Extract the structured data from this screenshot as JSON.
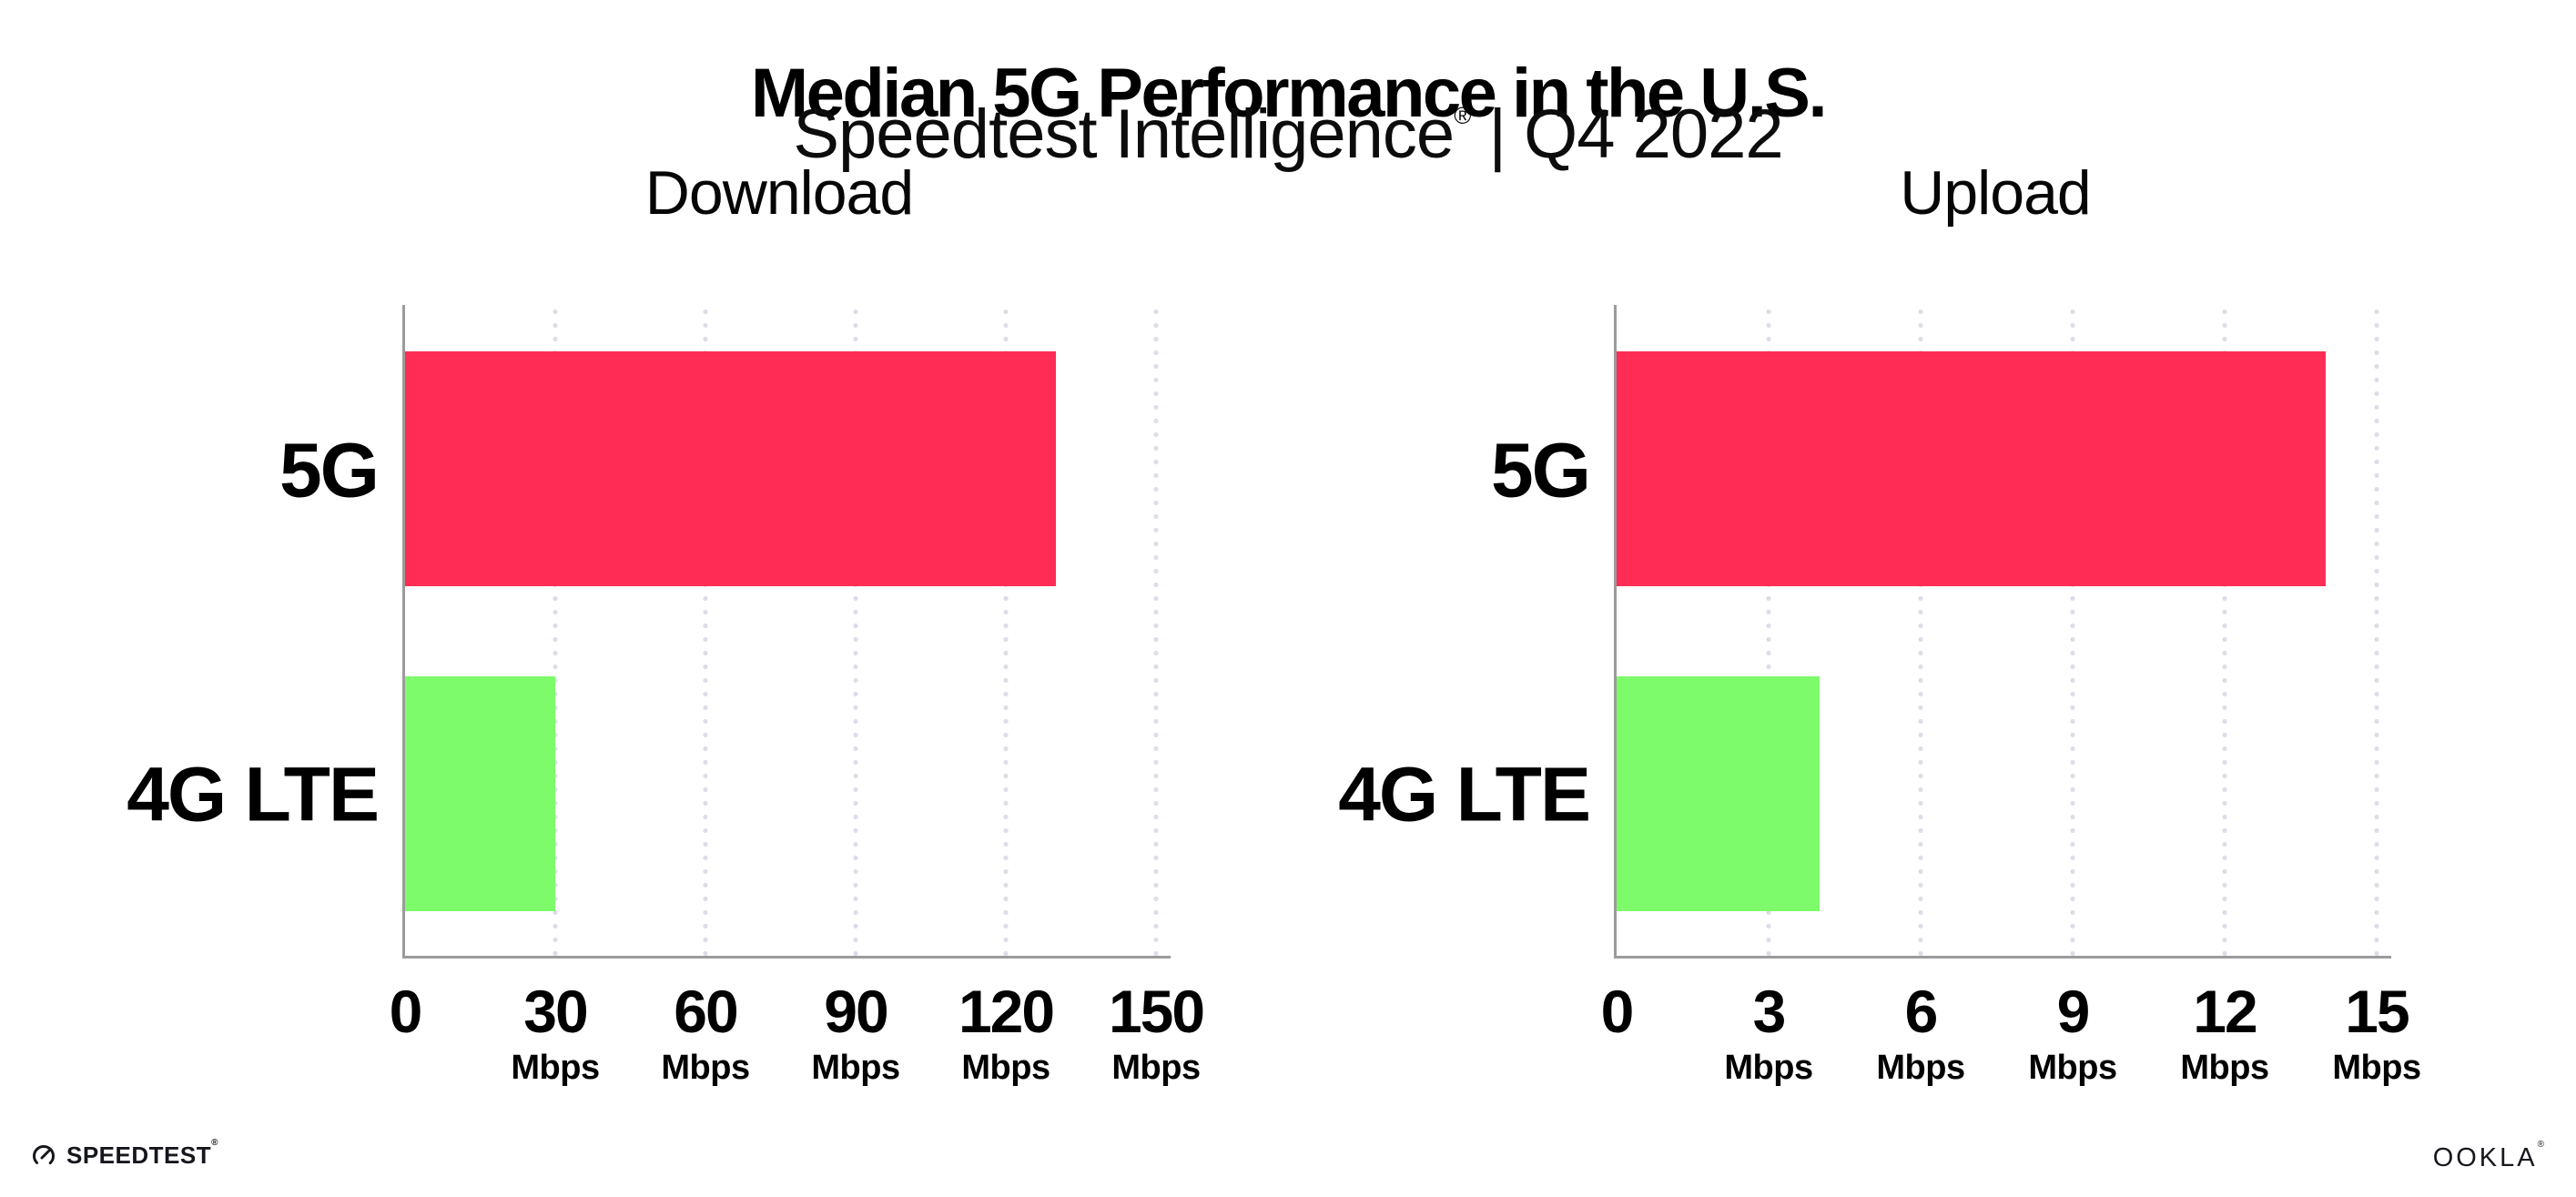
{
  "header": {
    "title": "Median 5G Performance in the U.S.",
    "subtitle": {
      "brand": "Speedtest Intelligence",
      "registered_mark": "®",
      "separator": "|",
      "period": "Q4 2022"
    }
  },
  "chart_data": [
    {
      "type": "bar",
      "orientation": "horizontal",
      "title": "Download",
      "categories": [
        "5G",
        "4G LTE"
      ],
      "values": [
        130,
        30
      ],
      "unit": "Mbps",
      "xlim": [
        0,
        150
      ],
      "xticks": [
        0,
        30,
        60,
        90,
        120,
        150
      ],
      "xtick_unit_label": "Mbps",
      "bar_colors": [
        "#FF2D55",
        "#7DFB6A"
      ],
      "grid": "vertical-dotted",
      "legend": "none"
    },
    {
      "type": "bar",
      "orientation": "horizontal",
      "title": "Upload",
      "categories": [
        "5G",
        "4G LTE"
      ],
      "values": [
        14,
        4
      ],
      "unit": "Mbps",
      "xlim": [
        0,
        15
      ],
      "xticks": [
        0,
        3,
        6,
        9,
        12,
        15
      ],
      "xtick_unit_label": "Mbps",
      "bar_colors": [
        "#FF2D55",
        "#7DFB6A"
      ],
      "grid": "vertical-dotted",
      "legend": "none"
    }
  ],
  "footer": {
    "speedtest_logo_text": "SPEEDTEST",
    "speedtest_mark": "®",
    "ookla_logo_text": "OOKLA",
    "ookla_mark": "®"
  },
  "colors": {
    "bar_5g": "#FF2D55",
    "bar_4g_lte": "#7DFB6A",
    "axis": "#9B9B9B",
    "gridline_dots": "#DDDDE8",
    "text": "#000000",
    "background": "#FFFFFF"
  }
}
